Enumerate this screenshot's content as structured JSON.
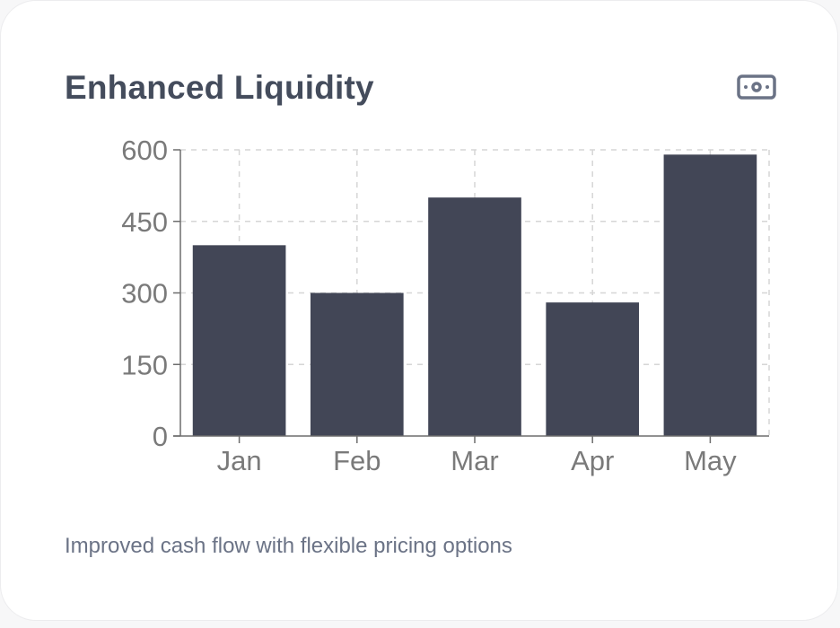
{
  "card": {
    "title": "Enhanced Liquidity",
    "icon": "money-bill-icon",
    "description": "Improved cash flow with flexible pricing options"
  },
  "colors": {
    "bar": "#424656",
    "grid": "#d6d6d6",
    "axis": "#6d6d6d",
    "tick_text": "#7a7a7a",
    "title": "#444c5c",
    "description": "#6b7386"
  },
  "chart_data": {
    "type": "bar",
    "categories": [
      "Jan",
      "Feb",
      "Mar",
      "Apr",
      "May"
    ],
    "values": [
      400,
      300,
      500,
      280,
      590
    ],
    "ylim": [
      0,
      600
    ],
    "yticks": [
      0,
      150,
      300,
      450,
      600
    ],
    "grid": true,
    "grid_style": "dashed",
    "xlabel": "",
    "ylabel": "",
    "legend": false
  }
}
